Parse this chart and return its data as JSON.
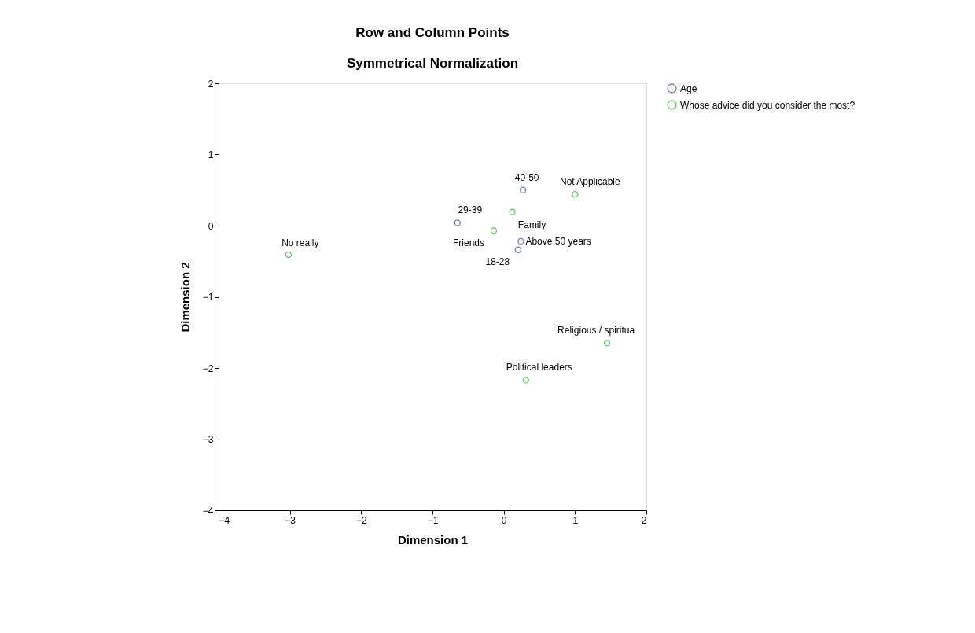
{
  "chart_data": {
    "type": "scatter",
    "title": "Row and Column Points",
    "subtitle": "Symmetrical Normalization",
    "xlabel": "Dimension 1",
    "ylabel": "Dimension 2",
    "series": [
      {
        "name": "Age",
        "color": "#6a7fc8",
        "x": [
          0.27,
          -0.65,
          0.24,
          0.2
        ],
        "values": [
          0.5,
          0.04,
          -0.22,
          -0.34
        ]
      },
      {
        "name": "Whose advice did you consider the most?",
        "color": "#5ecb5e",
        "x": [
          1.0,
          0.12,
          -0.14,
          -3.02,
          1.45,
          0.31
        ],
        "values": [
          0.44,
          0.19,
          -0.07,
          -0.41,
          -1.65,
          -2.17
        ]
      }
    ],
    "annotations": [
      {
        "text": "40-50",
        "x": 0.27,
        "y": 0.5
      },
      {
        "text": "29-39",
        "x": -0.65,
        "y": 0.04
      },
      {
        "text": "Above 50 years",
        "x": 0.24,
        "y": -0.22
      },
      {
        "text": "18-28",
        "x": 0.2,
        "y": -0.34
      },
      {
        "text": "Not Applicable",
        "x": 1.0,
        "y": 0.44
      },
      {
        "text": "Family",
        "x": 0.12,
        "y": 0.19
      },
      {
        "text": "Friends",
        "x": -0.14,
        "y": -0.07
      },
      {
        "text": "No really",
        "x": -3.02,
        "y": -0.41
      },
      {
        "text": "Religious / spiritua",
        "x": 1.45,
        "y": -1.65
      },
      {
        "text": "Political leaders",
        "x": 0.31,
        "y": -2.17
      }
    ],
    "xlim": [
      -4,
      2
    ],
    "ylim": [
      -4,
      2
    ],
    "xticks": [
      -4,
      -3,
      -2,
      -1,
      0,
      1,
      2
    ],
    "yticks": [
      -4,
      -3,
      -2,
      -1,
      0,
      1,
      2
    ],
    "marker": "circle",
    "grid": false,
    "legend": "top right"
  }
}
